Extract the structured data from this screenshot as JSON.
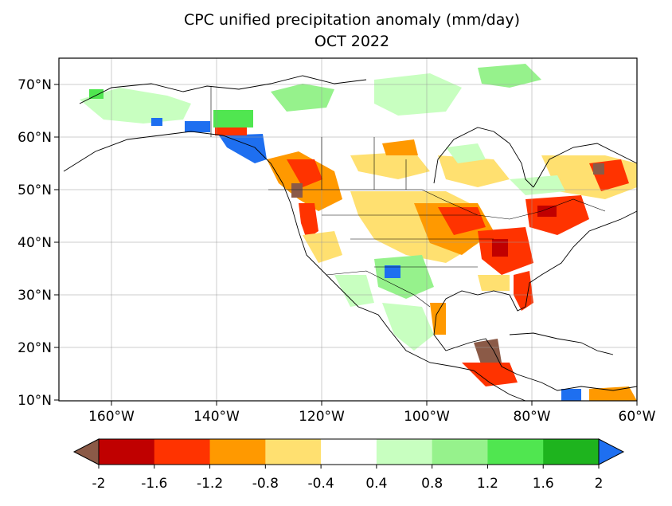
{
  "title_line1": "CPC unified precipitation anomaly (mm/day)",
  "title_line2": "OCT 2022",
  "map": {
    "lon_ticks": [
      "160°W",
      "140°W",
      "120°W",
      "100°W",
      "80°W",
      "60°W"
    ],
    "lat_ticks": [
      "70°N",
      "60°N",
      "50°N",
      "40°N",
      "30°N",
      "20°N",
      "10°N"
    ],
    "extent": {
      "lon": [
        -170,
        -60
      ],
      "lat": [
        10,
        75
      ]
    }
  },
  "colorbar": {
    "tick_labels": [
      "-2",
      "-1.6",
      "-1.2",
      "-0.8",
      "-0.4",
      "0.4",
      "0.8",
      "1.2",
      "1.6",
      "2"
    ],
    "under_color": "#8b5a47",
    "over_color": "#1e6ff0",
    "bins": [
      {
        "color": "#c00000"
      },
      {
        "color": "#ff3300"
      },
      {
        "color": "#ff9900"
      },
      {
        "color": "#ffe070"
      },
      {
        "color": "#ffffff"
      },
      {
        "color": "#c8ffc0"
      },
      {
        "color": "#96f28c"
      },
      {
        "color": "#50e650"
      },
      {
        "color": "#1eb41e"
      }
    ]
  }
}
